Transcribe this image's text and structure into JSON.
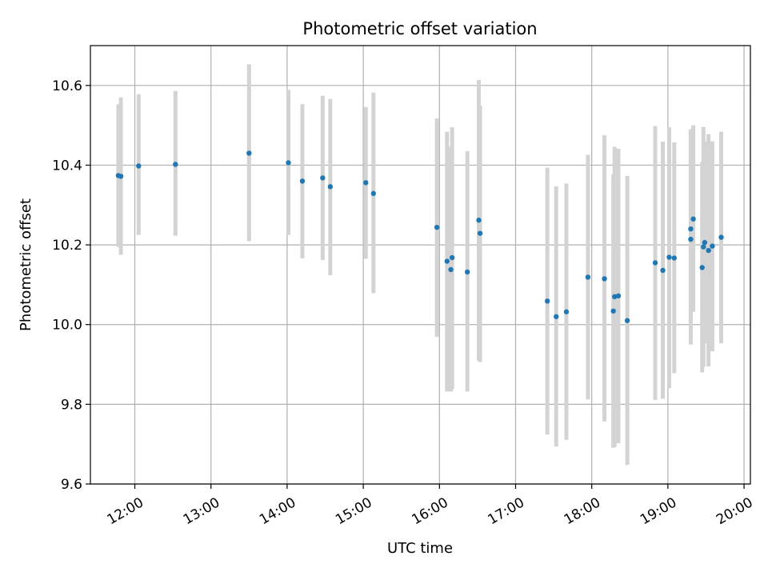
{
  "chart_data": {
    "type": "scatter",
    "title": "Photometric offset variation",
    "xlabel": "UTC time",
    "ylabel": "Photometric offset",
    "x_axis_kind": "time",
    "xlim": [
      "11:25",
      "20:05"
    ],
    "ylim": [
      9.6,
      10.7
    ],
    "x_ticks": [
      "12:00",
      "13:00",
      "14:00",
      "15:00",
      "16:00",
      "17:00",
      "18:00",
      "19:00",
      "20:00"
    ],
    "y_ticks": [
      "9.6",
      "9.8",
      "10.0",
      "10.2",
      "10.4",
      "10.6"
    ],
    "grid": true,
    "point_color": "#1f77b4",
    "errorbar_color": "#d3d3d3",
    "points": [
      {
        "x": "11:47",
        "y": 10.374,
        "lo": 10.195,
        "hi": 10.553
      },
      {
        "x": "11:49",
        "y": 10.372,
        "lo": 10.175,
        "hi": 10.57
      },
      {
        "x": "12:03",
        "y": 10.398,
        "lo": 10.225,
        "hi": 10.578
      },
      {
        "x": "12:32",
        "y": 10.402,
        "lo": 10.223,
        "hi": 10.586
      },
      {
        "x": "13:30",
        "y": 10.43,
        "lo": 10.209,
        "hi": 10.653
      },
      {
        "x": "14:01",
        "y": 10.406,
        "lo": 10.225,
        "hi": 10.589
      },
      {
        "x": "14:12",
        "y": 10.36,
        "lo": 10.166,
        "hi": 10.553
      },
      {
        "x": "14:28",
        "y": 10.368,
        "lo": 10.162,
        "hi": 10.574
      },
      {
        "x": "14:34",
        "y": 10.346,
        "lo": 10.124,
        "hi": 10.566
      },
      {
        "x": "15:02",
        "y": 10.356,
        "lo": 10.165,
        "hi": 10.546
      },
      {
        "x": "15:08",
        "y": 10.329,
        "lo": 10.079,
        "hi": 10.582
      },
      {
        "x": "15:58",
        "y": 10.244,
        "lo": 9.969,
        "hi": 10.517
      },
      {
        "x": "16:06",
        "y": 10.159,
        "lo": 9.832,
        "hi": 10.484
      },
      {
        "x": "16:09",
        "y": 10.138,
        "lo": 9.832,
        "hi": 10.446
      },
      {
        "x": "16:10",
        "y": 10.168,
        "lo": 9.838,
        "hi": 10.495
      },
      {
        "x": "16:22",
        "y": 10.132,
        "lo": 9.832,
        "hi": 10.435
      },
      {
        "x": "16:31",
        "y": 10.262,
        "lo": 9.91,
        "hi": 10.614
      },
      {
        "x": "16:32",
        "y": 10.229,
        "lo": 9.906,
        "hi": 10.55
      },
      {
        "x": "17:25",
        "y": 10.059,
        "lo": 9.724,
        "hi": 10.394
      },
      {
        "x": "17:32",
        "y": 10.02,
        "lo": 9.694,
        "hi": 10.347
      },
      {
        "x": "17:40",
        "y": 10.032,
        "lo": 9.711,
        "hi": 10.354
      },
      {
        "x": "17:57",
        "y": 10.119,
        "lo": 9.812,
        "hi": 10.426
      },
      {
        "x": "18:10",
        "y": 10.115,
        "lo": 9.757,
        "hi": 10.475
      },
      {
        "x": "18:17",
        "y": 10.034,
        "lo": 9.691,
        "hi": 10.377
      },
      {
        "x": "18:18",
        "y": 10.07,
        "lo": 9.693,
        "hi": 10.446
      },
      {
        "x": "18:21",
        "y": 10.072,
        "lo": 9.702,
        "hi": 10.441
      },
      {
        "x": "18:28",
        "y": 10.01,
        "lo": 9.648,
        "hi": 10.373
      },
      {
        "x": "18:50",
        "y": 10.155,
        "lo": 9.811,
        "hi": 10.498
      },
      {
        "x": "18:56",
        "y": 10.136,
        "lo": 9.814,
        "hi": 10.459
      },
      {
        "x": "19:01",
        "y": 10.169,
        "lo": 9.84,
        "hi": 10.495
      },
      {
        "x": "19:05",
        "y": 10.167,
        "lo": 9.878,
        "hi": 10.457
      },
      {
        "x": "19:18",
        "y": 10.214,
        "lo": 9.95,
        "hi": 10.485
      },
      {
        "x": "19:18",
        "y": 10.24,
        "lo": 9.993,
        "hi": 10.49
      },
      {
        "x": "19:20",
        "y": 10.265,
        "lo": 10.032,
        "hi": 10.5
      },
      {
        "x": "19:27",
        "y": 10.143,
        "lo": 9.88,
        "hi": 10.408
      },
      {
        "x": "19:28",
        "y": 10.195,
        "lo": 9.894,
        "hi": 10.496
      },
      {
        "x": "19:29",
        "y": 10.206,
        "lo": 9.953,
        "hi": 10.46
      },
      {
        "x": "19:32",
        "y": 10.186,
        "lo": 9.895,
        "hi": 10.478
      },
      {
        "x": "19:35",
        "y": 10.197,
        "lo": 9.933,
        "hi": 10.46
      },
      {
        "x": "19:42",
        "y": 10.219,
        "lo": 9.953,
        "hi": 10.484
      }
    ]
  }
}
